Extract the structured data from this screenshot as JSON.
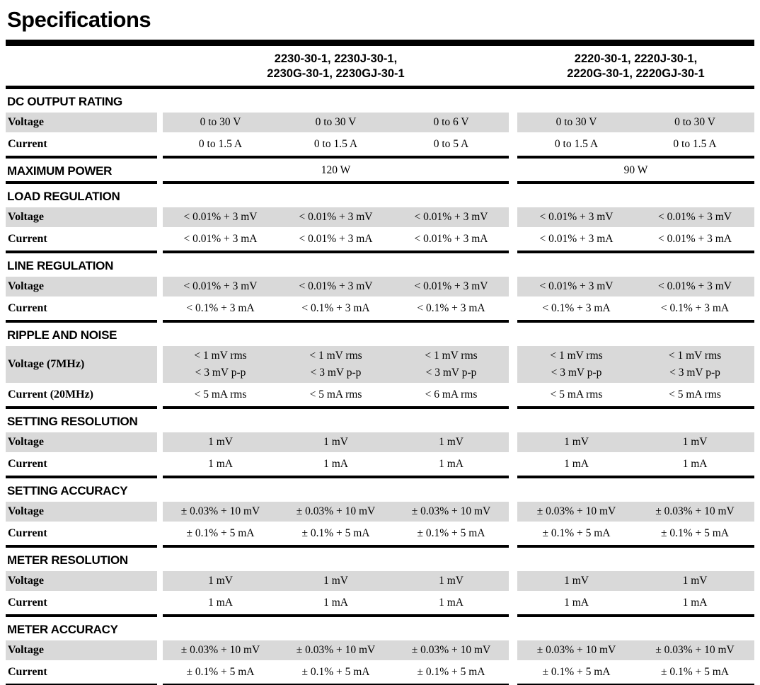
{
  "title": "Specifications",
  "colors": {
    "row_shade": "#d9d9d9",
    "rule": "#000000",
    "text": "#000000"
  },
  "header": {
    "groups": [
      {
        "line1": "2230-30-1, 2230J-30-1,",
        "line2": "2230G-30-1, 2230GJ-30-1",
        "columns": 3
      },
      {
        "line1": "2220-30-1, 2220J-30-1,",
        "line2": "2220G-30-1, 2220GJ-30-1",
        "columns": 2
      }
    ]
  },
  "sections": [
    {
      "name": "DC OUTPUT RATING",
      "rows": [
        {
          "label": "Voltage",
          "shaded": true,
          "values": [
            "0 to 30 V",
            "0 to 30 V",
            "0 to 6 V",
            "0 to 30 V",
            "0 to 30 V"
          ]
        },
        {
          "label": "Current",
          "shaded": false,
          "values": [
            "0 to 1.5 A",
            "0 to 1.5 A",
            "0 to 5 A",
            "0 to 1.5 A",
            "0 to 1.5 A"
          ]
        }
      ]
    },
    {
      "name": "MAXIMUM POWER",
      "merged_values": [
        "120 W",
        "90 W"
      ]
    },
    {
      "name": "LOAD REGULATION",
      "rows": [
        {
          "label": "Voltage",
          "shaded": true,
          "values": [
            "< 0.01% + 3 mV",
            "< 0.01% + 3 mV",
            "< 0.01% + 3 mV",
            "< 0.01% + 3 mV",
            "< 0.01% + 3 mV"
          ]
        },
        {
          "label": "Current",
          "shaded": false,
          "values": [
            "< 0.01% + 3 mA",
            "< 0.01% + 3 mA",
            "< 0.01% + 3 mA",
            "< 0.01% + 3 mA",
            "< 0.01% + 3 mA"
          ]
        }
      ]
    },
    {
      "name": "LINE REGULATION",
      "rows": [
        {
          "label": "Voltage",
          "shaded": true,
          "values": [
            "< 0.01% + 3 mV",
            "< 0.01% + 3 mV",
            "< 0.01% + 3 mV",
            "< 0.01% + 3 mV",
            "< 0.01% + 3 mV"
          ]
        },
        {
          "label": "Current",
          "shaded": false,
          "values": [
            "< 0.1% + 3 mA",
            "< 0.1% + 3 mA",
            "< 0.1% + 3 mA",
            "< 0.1% + 3 mA",
            "< 0.1% + 3 mA"
          ]
        }
      ]
    },
    {
      "name": "RIPPLE AND NOISE",
      "rows": [
        {
          "label": "Voltage (7MHz)",
          "shaded": true,
          "values": [
            [
              "< 1 mV rms",
              "< 3 mV p-p"
            ],
            [
              "< 1 mV rms",
              "< 3 mV p-p"
            ],
            [
              "< 1 mV rms",
              "< 3 mV p-p"
            ],
            [
              "< 1 mV rms",
              "< 3 mV p-p"
            ],
            [
              "< 1 mV rms",
              "< 3 mV p-p"
            ]
          ]
        },
        {
          "label": "Current (20MHz)",
          "shaded": false,
          "values": [
            "< 5 mA rms",
            "< 5 mA rms",
            "< 6 mA rms",
            "< 5 mA rms",
            "< 5 mA rms"
          ]
        }
      ]
    },
    {
      "name": "SETTING RESOLUTION",
      "rows": [
        {
          "label": "Voltage",
          "shaded": true,
          "values": [
            "1 mV",
            "1 mV",
            "1 mV",
            "1 mV",
            "1 mV"
          ]
        },
        {
          "label": "Current",
          "shaded": false,
          "values": [
            "1 mA",
            "1 mA",
            "1 mA",
            "1 mA",
            "1 mA"
          ]
        }
      ]
    },
    {
      "name": "SETTING ACCURACY",
      "rows": [
        {
          "label": "Voltage",
          "shaded": true,
          "values": [
            "± 0.03% + 10 mV",
            "± 0.03% + 10 mV",
            "± 0.03% + 10 mV",
            "± 0.03% + 10 mV",
            "± 0.03% + 10 mV"
          ]
        },
        {
          "label": "Current",
          "shaded": false,
          "values": [
            "± 0.1% + 5 mA",
            "± 0.1% + 5 mA",
            "± 0.1% + 5 mA",
            "± 0.1% + 5 mA",
            "± 0.1% + 5 mA"
          ]
        }
      ]
    },
    {
      "name": "METER RESOLUTION",
      "rows": [
        {
          "label": "Voltage",
          "shaded": true,
          "values": [
            "1 mV",
            "1 mV",
            "1 mV",
            "1 mV",
            "1 mV"
          ]
        },
        {
          "label": "Current",
          "shaded": false,
          "values": [
            "1 mA",
            "1 mA",
            "1 mA",
            "1 mA",
            "1 mA"
          ]
        }
      ]
    },
    {
      "name": "METER ACCURACY",
      "rows": [
        {
          "label": "Voltage",
          "shaded": true,
          "values": [
            "± 0.03% + 10 mV",
            "± 0.03% + 10 mV",
            "± 0.03% + 10 mV",
            "± 0.03% + 10 mV",
            "± 0.03% + 10 mV"
          ]
        },
        {
          "label": "Current",
          "shaded": false,
          "values": [
            "± 0.1% + 5 mA",
            "± 0.1% + 5 mA",
            "± 0.1% + 5 mA",
            "± 0.1% + 5 mA",
            "± 0.1% + 5 mA"
          ]
        }
      ]
    }
  ]
}
